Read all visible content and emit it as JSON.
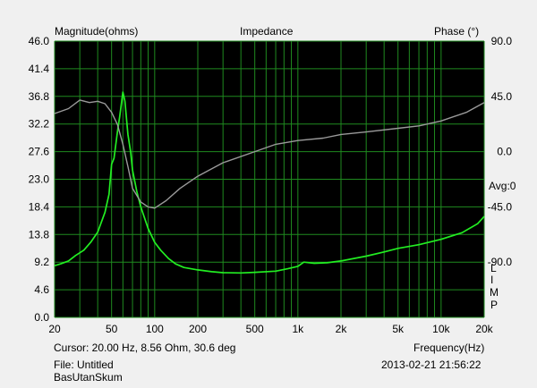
{
  "header": {
    "title": "Impedance",
    "left_axis_title": "Magnitude(ohms)",
    "right_axis_title": "Phase (°)"
  },
  "footer": {
    "cursor": "Cursor: 20.00 Hz, 8.56 Ohm, 30.6 deg",
    "x_axis_title": "Frequency(Hz)",
    "file": "File: Untitled",
    "datetime": "2013-02-21 21:56:22",
    "measurement_name": "BasUtanSkum"
  },
  "side_labels": {
    "avg": "Avg:0",
    "lim": [
      "L",
      "I",
      "M",
      "P"
    ]
  },
  "colors": {
    "plot_background": "#000000",
    "grid": "#1f8a1f",
    "magnitude": "#22ee22",
    "phase": "#9a9a9a",
    "window_background": "#f0f0f0"
  },
  "chart_data": {
    "type": "line",
    "title": "Impedance",
    "xlabel": "Frequency(Hz)",
    "ylabel": "Magnitude(ohms)",
    "y2label": "Phase (°)",
    "x_scale": "log",
    "xlim": [
      20,
      20000
    ],
    "ylim": [
      0,
      46
    ],
    "y2lim": [
      -135,
      90
    ],
    "grid": true,
    "x_ticks": [
      {
        "v": 20,
        "t": "20"
      },
      {
        "v": 50,
        "t": "50"
      },
      {
        "v": 100,
        "t": "100"
      },
      {
        "v": 200,
        "t": "200"
      },
      {
        "v": 500,
        "t": "500"
      },
      {
        "v": 1000,
        "t": "1k"
      },
      {
        "v": 2000,
        "t": "2k"
      },
      {
        "v": 5000,
        "t": "5k"
      },
      {
        "v": 10000,
        "t": "10k"
      },
      {
        "v": 20000,
        "t": "20k"
      }
    ],
    "y_ticks": [
      "0.0",
      "4.6",
      "9.2",
      "13.8",
      "18.4",
      "23.0",
      "27.6",
      "32.2",
      "36.8",
      "41.4",
      "46.0"
    ],
    "y2_ticks": [
      "90.0",
      "45.0",
      "0.0",
      "-45.0",
      "-90.0"
    ],
    "series": [
      {
        "name": "Magnitude",
        "axis": "left",
        "color": "#22ee22",
        "x": [
          20,
          22,
          25,
          28,
          32,
          36,
          40,
          45,
          48,
          50,
          52,
          55,
          57,
          60,
          62,
          65,
          68,
          70,
          75,
          80,
          90,
          100,
          110,
          125,
          140,
          160,
          200,
          250,
          300,
          400,
          500,
          700,
          850,
          1000,
          1100,
          1300,
          1600,
          2000,
          3000,
          4000,
          5000,
          7000,
          10000,
          14000,
          18000,
          20000
        ],
        "y": [
          8.6,
          8.9,
          9.4,
          10.3,
          11.2,
          12.6,
          14.2,
          17.5,
          20.5,
          25.5,
          26.5,
          31,
          33.5,
          37.5,
          36,
          30.5,
          27.5,
          24.5,
          21,
          18.4,
          14.8,
          12.5,
          11.2,
          9.8,
          8.9,
          8.3,
          7.9,
          7.6,
          7.45,
          7.4,
          7.5,
          7.7,
          8.1,
          8.5,
          9.2,
          9.0,
          9.1,
          9.4,
          10.2,
          10.9,
          11.5,
          12.1,
          13.0,
          14.1,
          15.6,
          16.8
        ]
      },
      {
        "name": "Phase",
        "axis": "right",
        "color": "#9a9a9a",
        "x": [
          20,
          25,
          30,
          35,
          40,
          45,
          50,
          55,
          60,
          65,
          70,
          80,
          90,
          100,
          120,
          150,
          200,
          300,
          500,
          700,
          1000,
          1500,
          2000,
          3000,
          5000,
          7000,
          10000,
          15000,
          20000
        ],
        "y": [
          31,
          35,
          42,
          40,
          41,
          39,
          32,
          22,
          6,
          -12,
          -30,
          -41,
          -45,
          -46,
          -40,
          -30,
          -20,
          -9,
          0,
          6,
          9,
          11,
          14,
          16,
          19,
          21,
          25,
          32,
          40
        ]
      }
    ]
  }
}
